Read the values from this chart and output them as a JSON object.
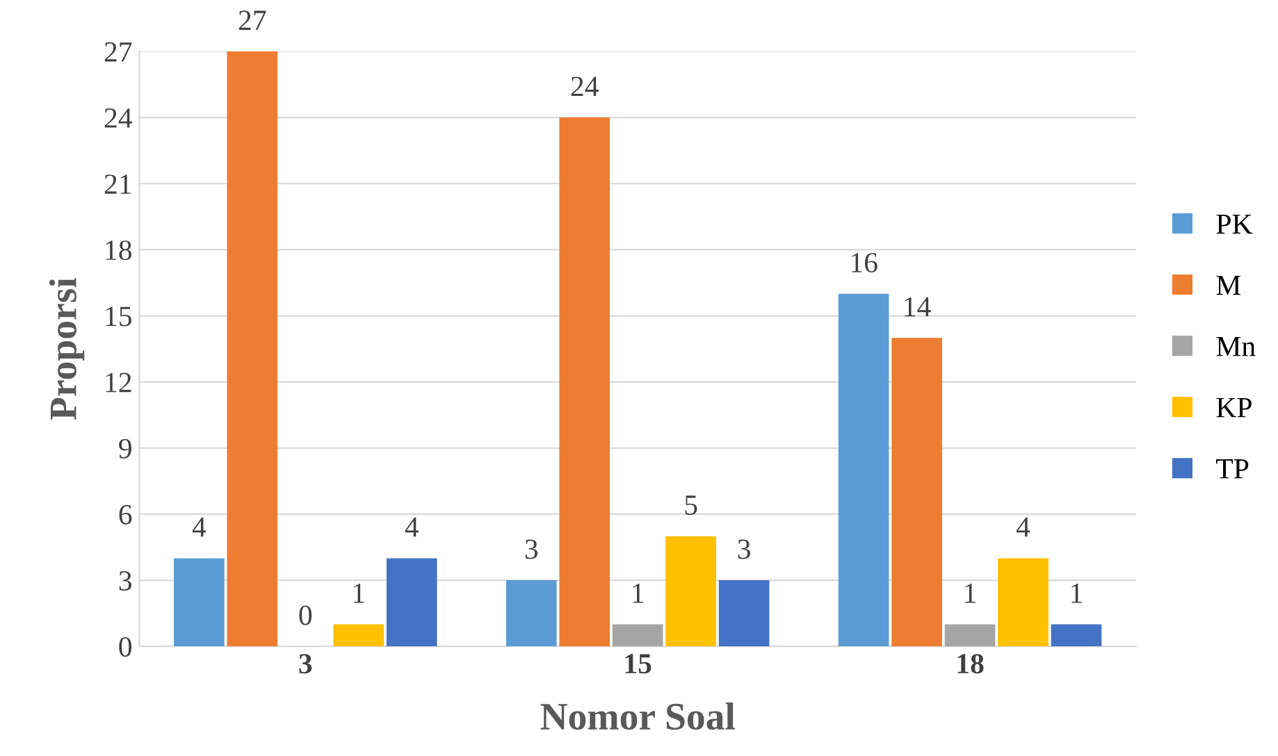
{
  "chart_data": {
    "type": "bar",
    "xlabel": "Nomor Soal",
    "ylabel": "Proporsi",
    "categories": [
      "3",
      "15",
      "18"
    ],
    "series": [
      {
        "name": "PK",
        "color": "#5b9bd5",
        "values": [
          4,
          3,
          16
        ]
      },
      {
        "name": "M",
        "color": "#ed7d31",
        "values": [
          27,
          24,
          14
        ]
      },
      {
        "name": "Mn",
        "color": "#a5a5a5",
        "values": [
          0,
          1,
          1
        ]
      },
      {
        "name": "KP",
        "color": "#ffc000",
        "values": [
          1,
          5,
          4
        ]
      },
      {
        "name": "TP",
        "color": "#4472c4",
        "values": [
          4,
          3,
          1
        ]
      }
    ],
    "ylim": [
      0,
      27
    ],
    "yticks": [
      0,
      3,
      6,
      9,
      12,
      15,
      18,
      21,
      24,
      27
    ],
    "grid": "y",
    "legend": "right",
    "data_labels": true
  }
}
